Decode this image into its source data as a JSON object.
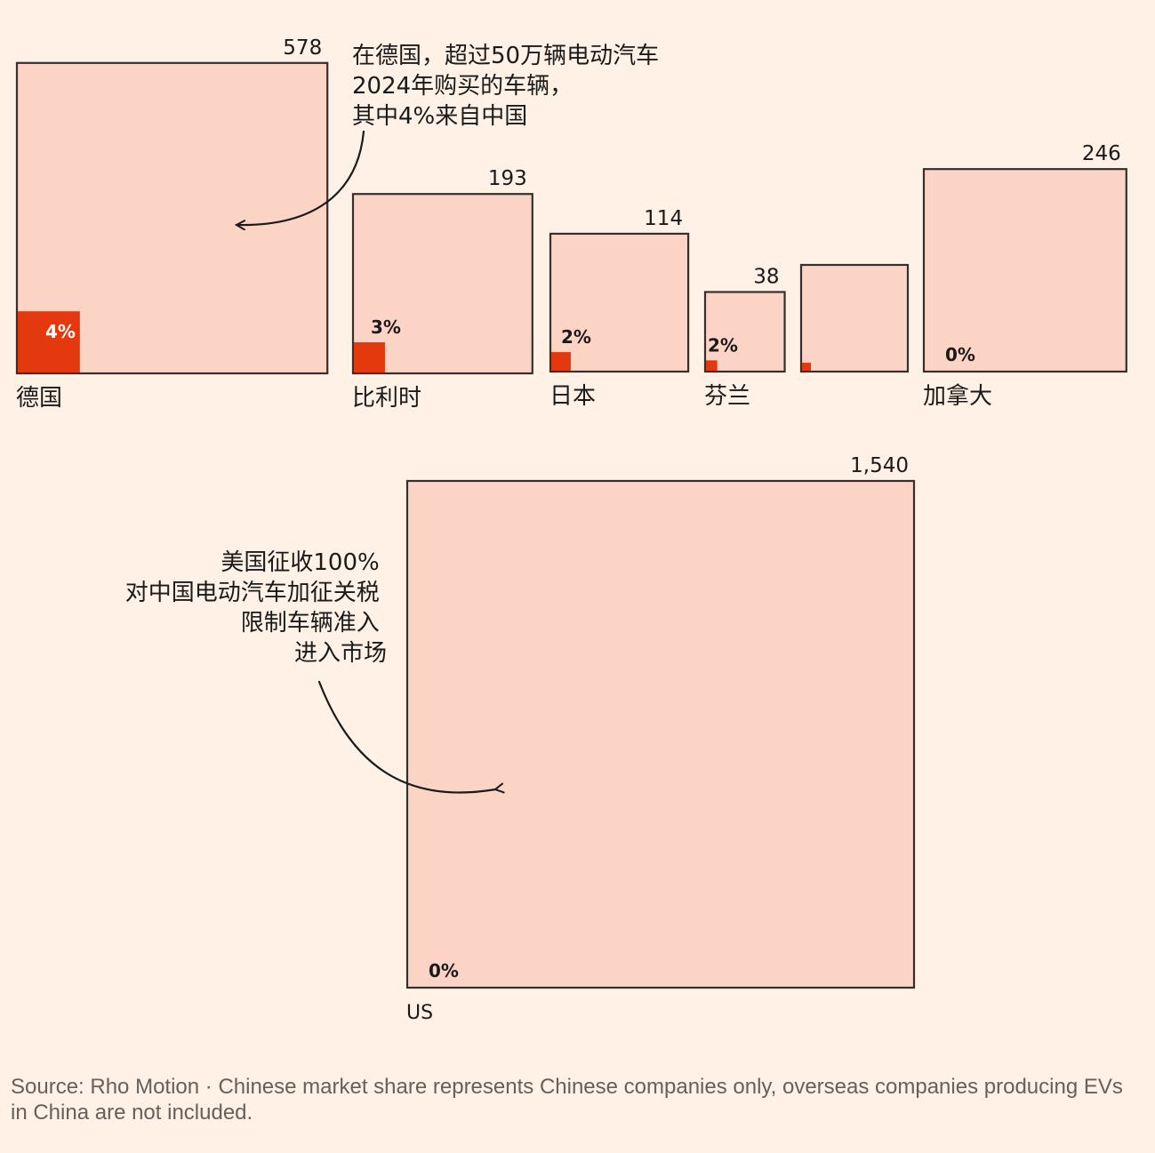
{
  "chart_data": {
    "type": "proportional-squares",
    "series": [
      {
        "country": "德国",
        "total": "578",
        "total_value": 578,
        "share_label": "4%",
        "share": 0.04
      },
      {
        "country": "比利时",
        "total": "193",
        "total_value": 193,
        "share_label": "3%",
        "share": 0.03
      },
      {
        "country": "日本",
        "total": "114",
        "total_value": 114,
        "share_label": "2%",
        "share": 0.02
      },
      {
        "country": "芬兰",
        "total": "38",
        "total_value": 38,
        "share_label": "2%",
        "share": 0.02
      },
      {
        "country": "",
        "total": "",
        "total_value": null,
        "share_label": "",
        "share": null
      },
      {
        "country": "加拿大",
        "total": "246",
        "total_value": 246,
        "share_label": "0%",
        "share": 0
      },
      {
        "country": "US",
        "total": "1,540",
        "total_value": 1540,
        "share_label": "0%",
        "share": 0
      }
    ],
    "annotations": [
      {
        "lines": [
          "在德国，超过50万辆电动汽车",
          "2024年购买的车辆，",
          "其中4%来自中国"
        ]
      },
      {
        "lines": [
          "美国征收100%",
          "对中国电动汽车加征关税",
          "限制车辆准入",
          "进入市场"
        ]
      }
    ],
    "colors": {
      "box": "#fcd4c6",
      "share": "#e4380f",
      "background": "#fff1e5"
    }
  },
  "source": "Source: Rho Motion · Chinese market share represents Chinese companies only, overseas companies producing EVs in China are not included."
}
